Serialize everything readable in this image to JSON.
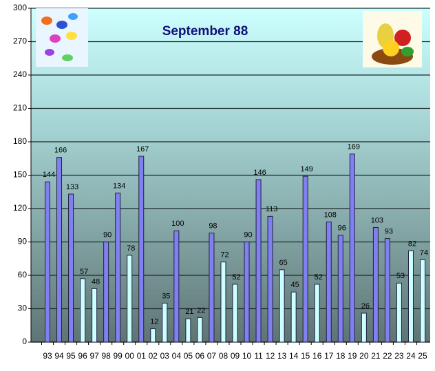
{
  "chart_data": {
    "type": "bar",
    "title": "September 88",
    "categories": [
      "93",
      "94",
      "95",
      "96",
      "97",
      "98",
      "99",
      "00",
      "01",
      "02",
      "03",
      "04",
      "05",
      "06",
      "07",
      "08",
      "09",
      "10",
      "11",
      "12",
      "13",
      "14",
      "15",
      "16",
      "17",
      "18",
      "19",
      "20",
      "21",
      "22",
      "23",
      "24",
      "25"
    ],
    "values": [
      144,
      166,
      133,
      57,
      48,
      90,
      134,
      78,
      167,
      12,
      35,
      100,
      21,
      22,
      98,
      72,
      52,
      90,
      146,
      113,
      65,
      45,
      149,
      52,
      108,
      96,
      169,
      26,
      103,
      93,
      53,
      82,
      74
    ],
    "colors": [
      "#8080f0",
      "#8080f0",
      "#8080f0",
      "#ccffff",
      "#ccffff",
      "#8080f0",
      "#8080f0",
      "#ccffff",
      "#8080f0",
      "#ccffff",
      "#ccffff",
      "#8080f0",
      "#ccffff",
      "#ccffff",
      "#8080f0",
      "#ccffff",
      "#ccffff",
      "#8080f0",
      "#8080f0",
      "#8080f0",
      "#ccffff",
      "#ccffff",
      "#8080f0",
      "#ccffff",
      "#8080f0",
      "#8080f0",
      "#8080f0",
      "#ccffff",
      "#8080f0",
      "#8080f0",
      "#ccffff",
      "#ccffff",
      "#ccffff"
    ],
    "ylim": [
      0,
      300
    ],
    "yticks": [
      0,
      30,
      60,
      90,
      120,
      150,
      180,
      210,
      240,
      270,
      300
    ],
    "grid": true
  }
}
